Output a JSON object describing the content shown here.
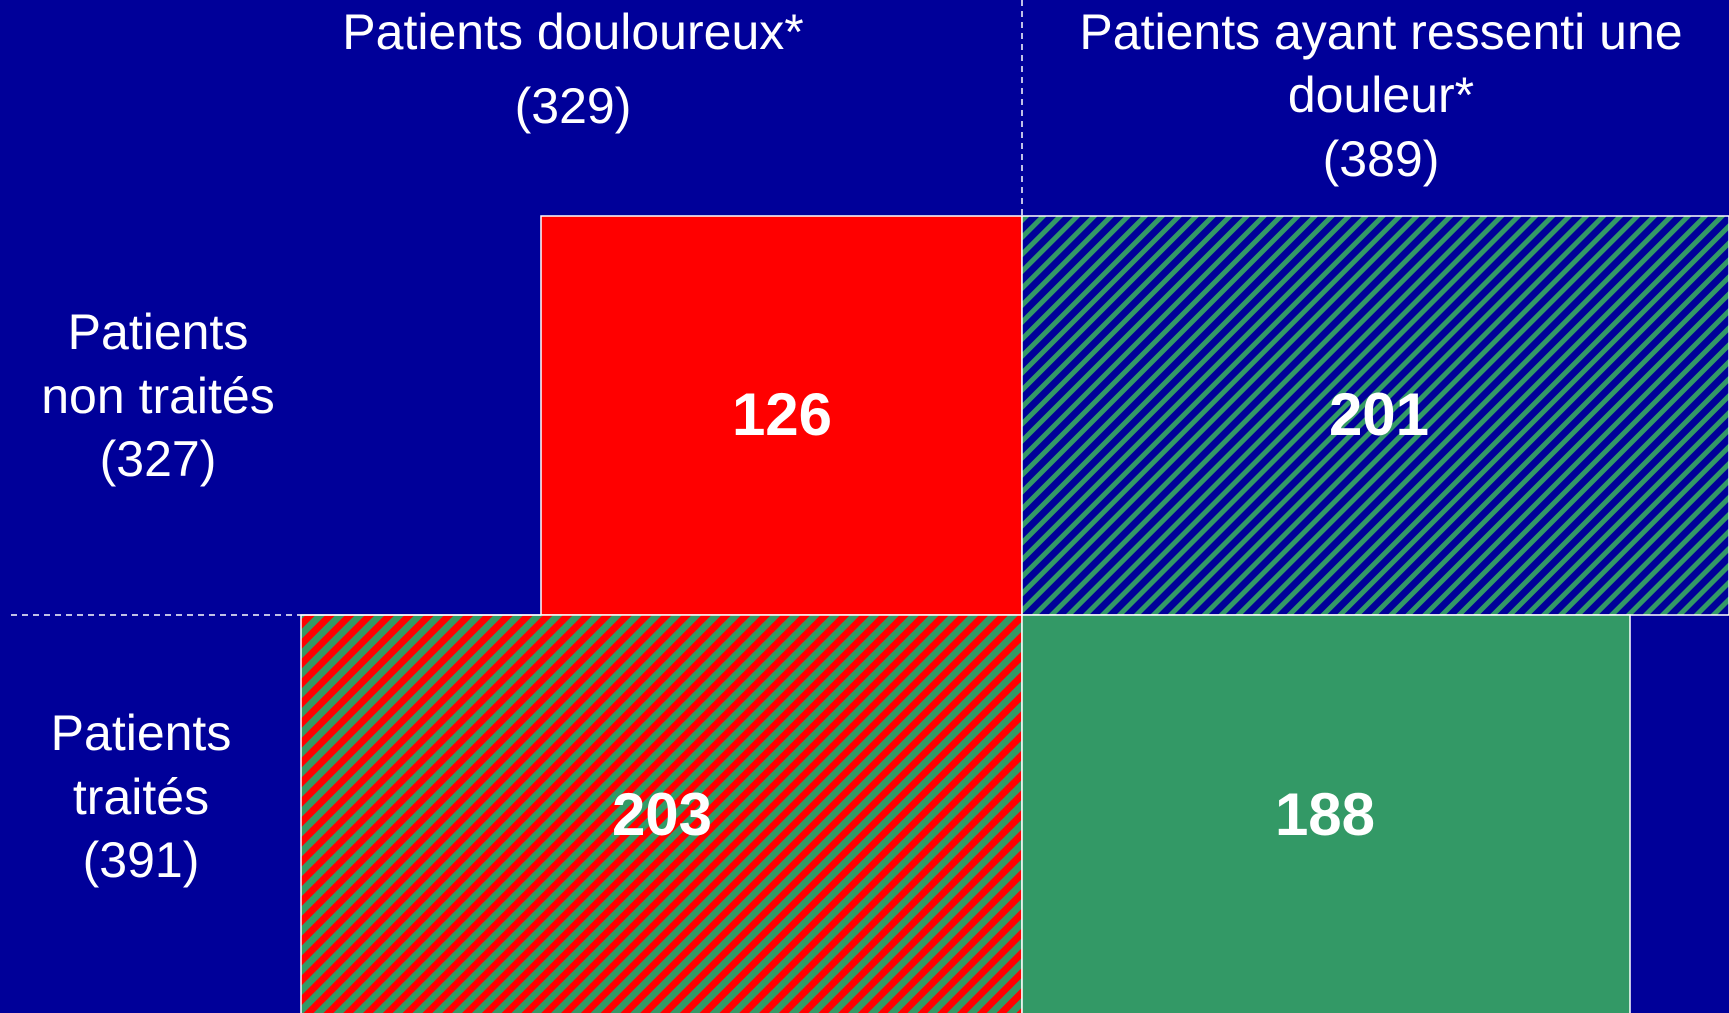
{
  "columns": [
    {
      "lines": [
        "Patients douloureux*"
      ],
      "count": "(329)"
    },
    {
      "lines": [
        "Patients ayant ressenti une",
        "douleur*"
      ],
      "count": "(389)"
    }
  ],
  "rows": [
    {
      "lines": [
        "Patients",
        "non traités"
      ],
      "count": "(327)"
    },
    {
      "lines": [
        "Patients",
        "traités"
      ],
      "count": "(391)"
    }
  ],
  "cells": [
    [
      "126",
      "201"
    ],
    [
      "203",
      "188"
    ]
  ]
}
